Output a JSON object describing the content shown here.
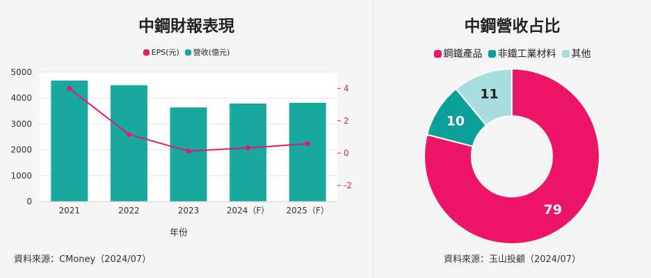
{
  "colors": {
    "eps": "#e8176a",
    "revenue": "#19a89f",
    "steel": "#ee1566",
    "nonsteel": "#0b9f99",
    "other": "#a8dde0"
  },
  "left": {
    "title": "中鋼財報表現",
    "source": "資料來源：CMoney（2024/07）"
  },
  "right": {
    "title": "中鋼營收占比",
    "source": "資料來源：玉山投顧（2024/07）"
  },
  "chart_data": [
    {
      "type": "bar",
      "title": "中鋼財報表現",
      "xlabel": "年份",
      "ylabel": "",
      "categories": [
        "2021",
        "2022",
        "2023",
        "2024（F）",
        "2025（F）"
      ],
      "ylim": [
        0,
        5000
      ],
      "yticks": [
        "0",
        "1000",
        "2000",
        "3000",
        "4000",
        "5000"
      ],
      "y2lim": [
        -3,
        5
      ],
      "y2ticks": [
        "-2",
        "0",
        "2",
        "4"
      ],
      "grid": true,
      "legend": "top-center",
      "series": [
        {
          "name": "EPS(元)",
          "type": "line",
          "axis": "right",
          "color": "#e8176a",
          "values": [
            4.0,
            1.15,
            0.12,
            0.32,
            0.58
          ]
        },
        {
          "name": "營收(億元)",
          "type": "bar",
          "axis": "left",
          "color": "#19a89f",
          "values": [
            4680,
            4500,
            3640,
            3790,
            3820
          ]
        }
      ]
    },
    {
      "type": "pie",
      "title": "中鋼營收占比",
      "style": "donut",
      "legend": "top-center",
      "series": [
        {
          "name": "鋼鐵產品",
          "value": 79,
          "label": "79",
          "color": "#ee1566"
        },
        {
          "name": "非鐵工業材料",
          "value": 10,
          "label": "10",
          "color": "#0b9f99"
        },
        {
          "name": "其他",
          "value": 11,
          "label": "11",
          "color": "#a8dde0"
        }
      ]
    }
  ]
}
